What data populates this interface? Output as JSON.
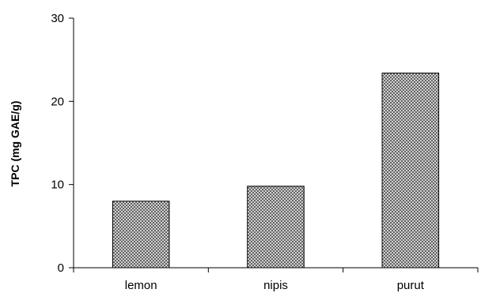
{
  "chart_data": {
    "type": "bar",
    "title": "",
    "xlabel": "",
    "ylabel": "TPC (mg GAE/g)",
    "categories": [
      "lemon",
      "nipis",
      "purut"
    ],
    "values": [
      8.0,
      9.8,
      23.4
    ],
    "ylim": [
      0,
      30
    ],
    "yticks": [
      0,
      10,
      20,
      30
    ],
    "grid": false,
    "legend": "none",
    "bar_fill": "crosshatch",
    "colors": {
      "bar_fill": "#ffffff",
      "bar_hatch": "#555555",
      "bar_stroke": "#000000",
      "axis": "#000000"
    }
  }
}
